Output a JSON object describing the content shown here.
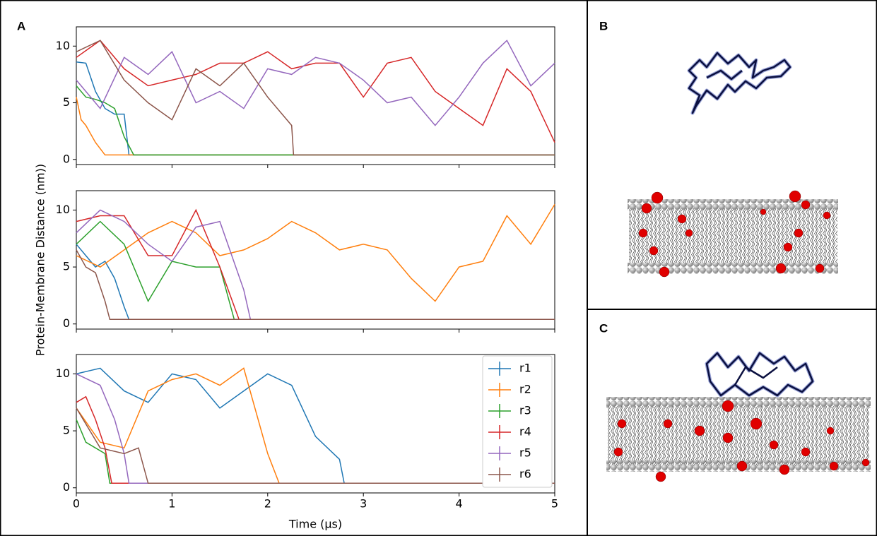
{
  "panel_labels": [
    "A",
    "B",
    "C"
  ],
  "chart_data": [
    {
      "type": "line",
      "xlim": [
        0,
        5
      ],
      "ylim": [
        -0.45,
        11.7
      ],
      "yticks": [
        0,
        5,
        10
      ],
      "series": [
        {
          "name": "r1",
          "color": "#1f77b4",
          "x": [
            0,
            0.1,
            0.2,
            0.3,
            0.4,
            0.5,
            0.55,
            5
          ],
          "values": [
            8.6,
            8.5,
            6,
            4.5,
            4,
            4,
            0.4,
            0.4
          ]
        },
        {
          "name": "r2",
          "color": "#ff7f0e",
          "x": [
            0,
            0.05,
            0.1,
            0.2,
            0.3,
            5
          ],
          "values": [
            5.5,
            3.5,
            3,
            1.5,
            0.4,
            0.4
          ]
        },
        {
          "name": "r3",
          "color": "#2ca02c",
          "x": [
            0,
            0.1,
            0.2,
            0.3,
            0.4,
            0.5,
            0.6,
            5
          ],
          "values": [
            6.5,
            5.5,
            5.3,
            5,
            4.5,
            2,
            0.4,
            0.4
          ]
        },
        {
          "name": "r4",
          "color": "#d62728",
          "x": [
            0,
            0.25,
            0.5,
            0.75,
            1,
            1.25,
            1.5,
            1.75,
            2,
            2.25,
            2.5,
            2.75,
            3,
            3.25,
            3.5,
            3.75,
            4,
            4.25,
            4.5,
            4.75,
            5
          ],
          "values": [
            9,
            10.5,
            8,
            6.5,
            7,
            7.5,
            8.5,
            8.5,
            9.5,
            8,
            8.5,
            8.5,
            5.5,
            8.5,
            9,
            6,
            4.5,
            3,
            8,
            6,
            1.5
          ]
        },
        {
          "name": "r5",
          "color": "#9467bd",
          "x": [
            0,
            0.25,
            0.5,
            0.75,
            1,
            1.25,
            1.5,
            1.75,
            2,
            2.25,
            2.5,
            2.75,
            3,
            3.25,
            3.5,
            3.75,
            4,
            4.25,
            4.5,
            4.75,
            5
          ],
          "values": [
            7,
            4.5,
            9,
            7.5,
            9.5,
            5,
            6,
            4.5,
            8,
            7.5,
            9,
            8.5,
            7,
            5,
            5.5,
            3,
            5.5,
            8.5,
            10.5,
            6.5,
            8.5
          ]
        },
        {
          "name": "r6",
          "color": "#8c564b",
          "x": [
            0,
            0.25,
            0.5,
            0.75,
            1,
            1.25,
            1.5,
            1.75,
            2,
            2.25,
            2.27,
            5
          ],
          "values": [
            9.5,
            10.5,
            7,
            5,
            3.5,
            8,
            6.5,
            8.5,
            5.5,
            3,
            0.4,
            0.4
          ]
        }
      ]
    },
    {
      "type": "line",
      "xlim": [
        0,
        5
      ],
      "ylim": [
        -0.45,
        11.7
      ],
      "yticks": [
        0,
        5,
        10
      ],
      "ylabel": "Protein-Membrane Distance (nm))",
      "series": [
        {
          "name": "r1",
          "color": "#1f77b4",
          "x": [
            0,
            0.1,
            0.2,
            0.3,
            0.4,
            0.5,
            0.55,
            5
          ],
          "values": [
            7,
            6,
            5,
            5.5,
            4,
            1.5,
            0.4,
            0.4
          ]
        },
        {
          "name": "r2",
          "color": "#ff7f0e",
          "x": [
            0,
            0.25,
            0.5,
            0.75,
            1,
            1.25,
            1.5,
            1.75,
            2,
            2.25,
            2.5,
            2.75,
            3,
            3.25,
            3.5,
            3.75,
            4,
            4.25,
            4.5,
            4.75,
            5
          ],
          "values": [
            6,
            5,
            6.5,
            8,
            9,
            8,
            6,
            6.5,
            7.5,
            9,
            8,
            6.5,
            7,
            6.5,
            4,
            2,
            5,
            5.5,
            9.5,
            7,
            10.5
          ]
        },
        {
          "name": "r3",
          "color": "#2ca02c",
          "x": [
            0,
            0.25,
            0.5,
            0.75,
            1,
            1.25,
            1.5,
            1.65,
            5
          ],
          "values": [
            7,
            9,
            7,
            2,
            5.5,
            5,
            5,
            0.4,
            0.4
          ]
        },
        {
          "name": "r4",
          "color": "#d62728",
          "x": [
            0,
            0.25,
            0.5,
            0.75,
            1,
            1.25,
            1.5,
            1.7,
            5
          ],
          "values": [
            9,
            9.5,
            9.5,
            6,
            6,
            10,
            5,
            0.4,
            0.4
          ]
        },
        {
          "name": "r5",
          "color": "#9467bd",
          "x": [
            0,
            0.25,
            0.5,
            0.75,
            1,
            1.25,
            1.5,
            1.75,
            1.82,
            5
          ],
          "values": [
            8,
            10,
            9,
            7,
            5.5,
            8.5,
            9,
            3,
            0.4,
            0.4
          ]
        },
        {
          "name": "r6",
          "color": "#8c564b",
          "x": [
            0,
            0.1,
            0.2,
            0.3,
            0.35,
            5
          ],
          "values": [
            6.5,
            5,
            4.5,
            2,
            0.4,
            0.4
          ]
        }
      ]
    },
    {
      "type": "line",
      "xlim": [
        0,
        5
      ],
      "ylim": [
        -0.45,
        11.7
      ],
      "yticks": [
        0,
        5,
        10
      ],
      "xticks": [
        0,
        1,
        2,
        3,
        4,
        5
      ],
      "xlabel": "Time (µs)",
      "legend": "upper right",
      "series": [
        {
          "name": "r1",
          "color": "#1f77b4",
          "x": [
            0,
            0.25,
            0.5,
            0.75,
            1,
            1.25,
            1.5,
            1.75,
            2,
            2.25,
            2.5,
            2.75,
            2.8,
            5
          ],
          "values": [
            10,
            10.5,
            8.5,
            7.5,
            10,
            9.5,
            7,
            8.5,
            10,
            9,
            4.5,
            2.5,
            0.4,
            0.4
          ]
        },
        {
          "name": "r2",
          "color": "#ff7f0e",
          "x": [
            0,
            0.25,
            0.5,
            0.75,
            1,
            1.25,
            1.5,
            1.75,
            2,
            2.12,
            5
          ],
          "values": [
            7,
            4,
            3.5,
            8.5,
            9.5,
            10,
            9,
            10.5,
            3,
            0.4,
            0.4
          ]
        },
        {
          "name": "r3",
          "color": "#2ca02c",
          "x": [
            0,
            0.1,
            0.2,
            0.3,
            0.35,
            5
          ],
          "values": [
            6,
            4,
            3.5,
            3,
            0.4,
            0.4
          ]
        },
        {
          "name": "r4",
          "color": "#d62728",
          "x": [
            0,
            0.1,
            0.2,
            0.3,
            0.37,
            5
          ],
          "values": [
            7.5,
            8,
            6,
            3.5,
            0.4,
            0.4
          ]
        },
        {
          "name": "r5",
          "color": "#9467bd",
          "x": [
            0,
            0.25,
            0.4,
            0.5,
            0.55,
            5
          ],
          "values": [
            10,
            9,
            6,
            3,
            0.4,
            0.4
          ]
        },
        {
          "name": "r6",
          "color": "#8c564b",
          "x": [
            0,
            0.25,
            0.5,
            0.65,
            0.75,
            5
          ],
          "values": [
            7,
            3.5,
            3,
            3.5,
            0.4,
            0.4
          ]
        }
      ]
    }
  ]
}
